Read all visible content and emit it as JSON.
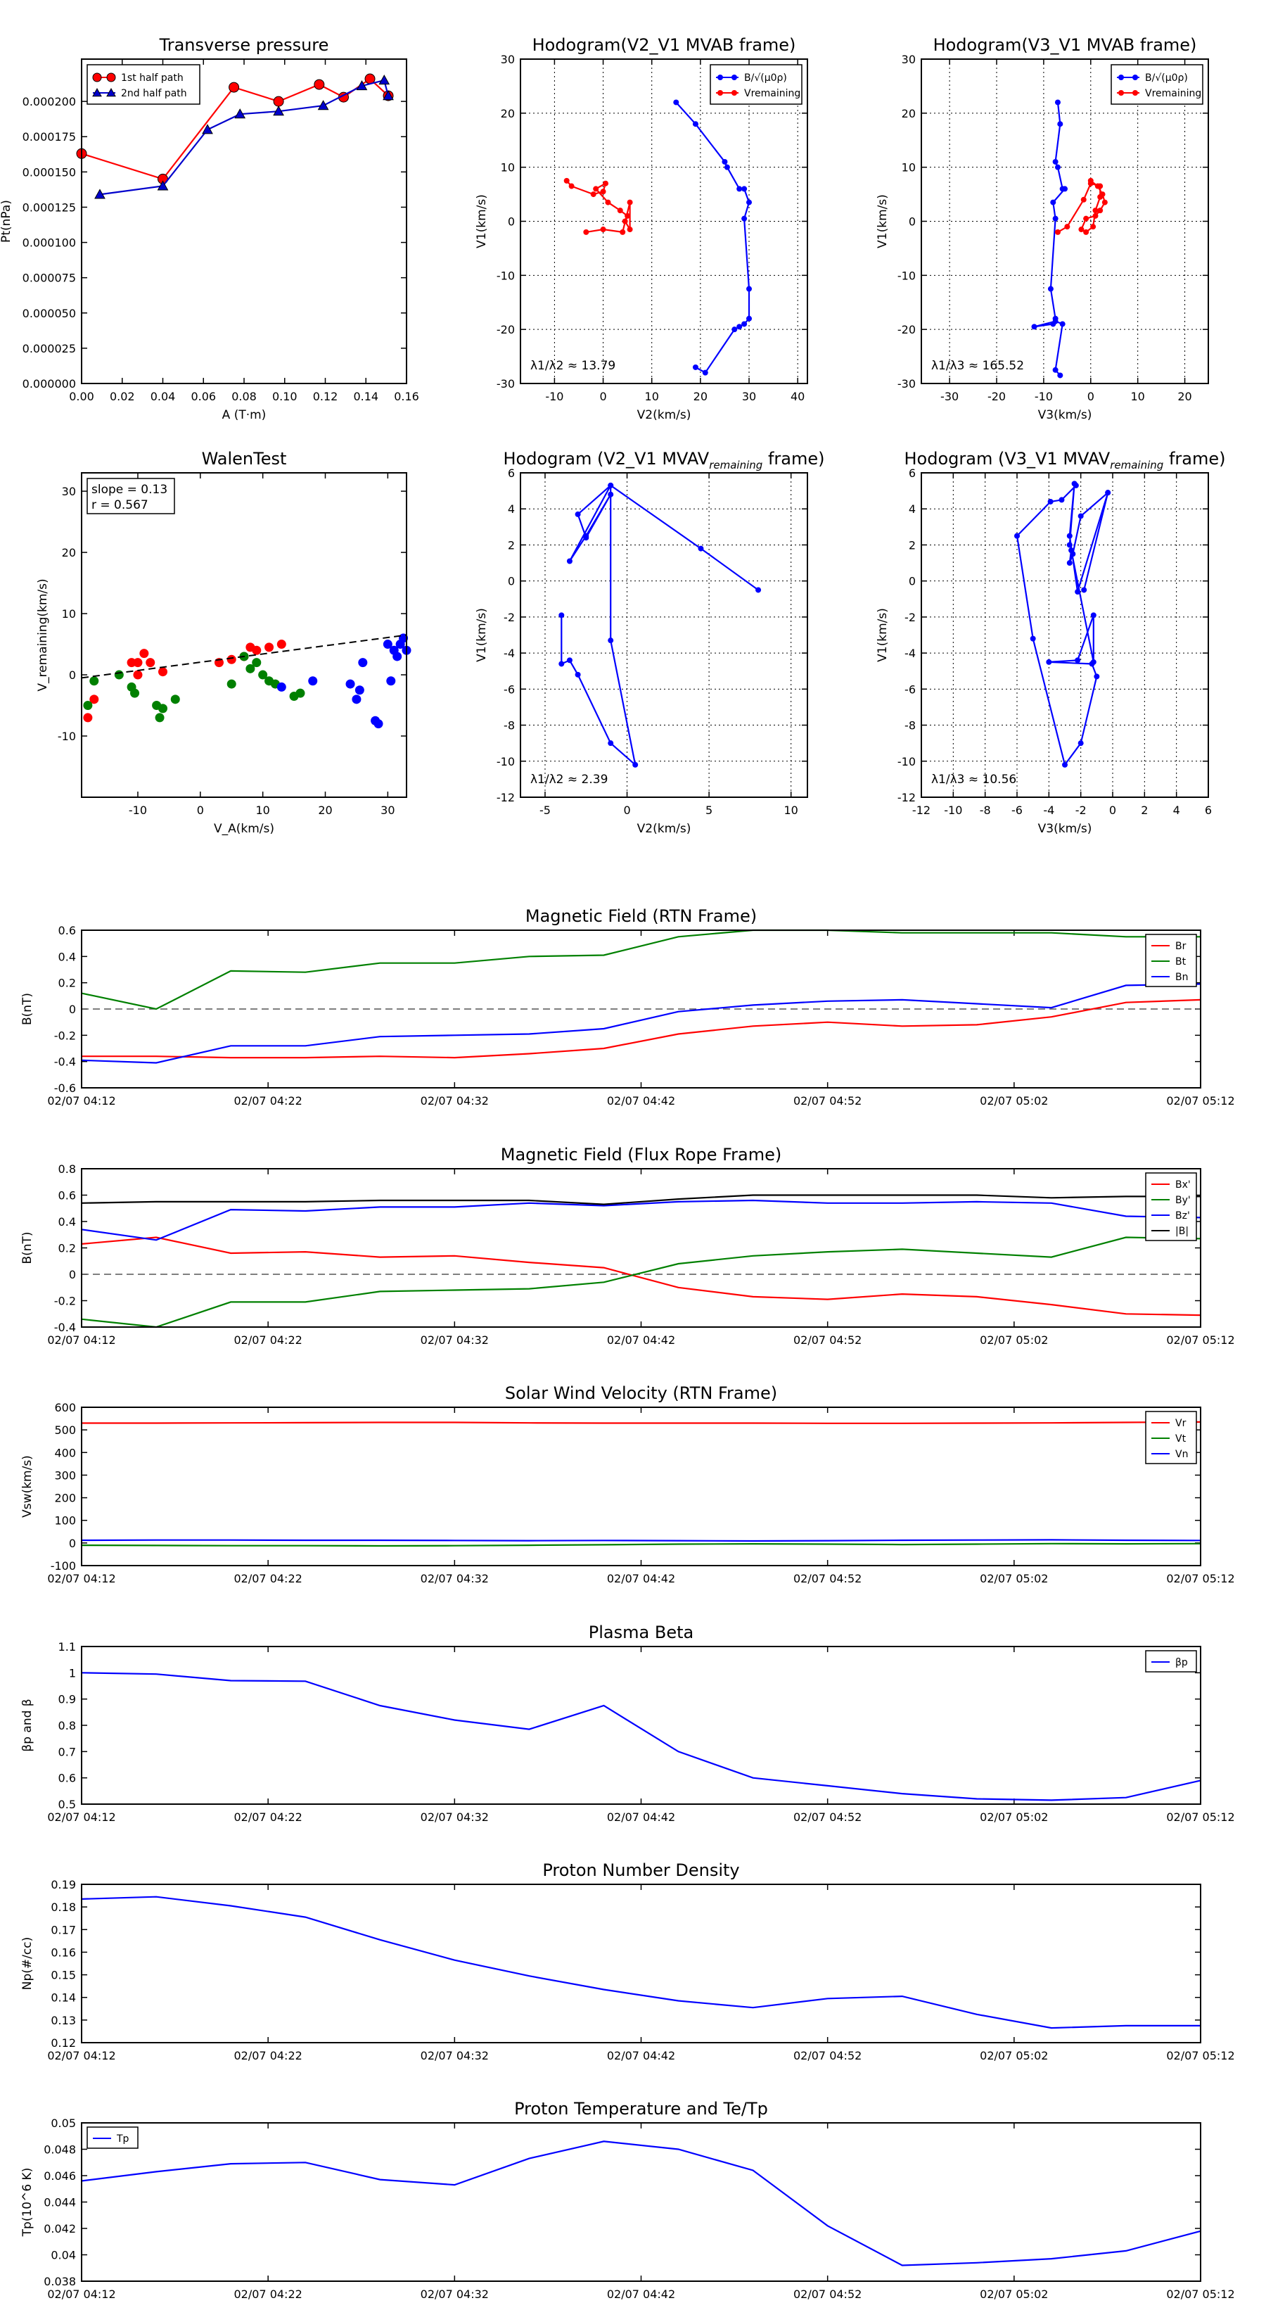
{
  "chart_data": [
    {
      "id": "transverse_pressure",
      "type": "line",
      "title": "Transverse pressure",
      "xlabel": "A (T·m)",
      "ylabel": "Pt(nPa)",
      "xlim": [
        0,
        0.16
      ],
      "ylim": [
        0,
        0.00023
      ],
      "grid": false,
      "legend_position": "top-left",
      "xticks": [
        0,
        0.02,
        0.04,
        0.06,
        0.08,
        0.1,
        0.12,
        0.14,
        0.16
      ],
      "xtick_labels": [
        "0.00",
        "0.02",
        "0.04",
        "0.06",
        "0.08",
        "0.10",
        "0.12",
        "0.14",
        "0.16"
      ],
      "yticks": [
        0,
        2.5e-05,
        5e-05,
        7.5e-05,
        0.0001,
        0.000125,
        0.00015,
        0.000175,
        0.0002
      ],
      "ytick_labels": [
        "0.000000",
        "0.000025",
        "0.000050",
        "0.000075",
        "0.000100",
        "0.000125",
        "0.000150",
        "0.000175",
        "0.000200"
      ],
      "series": [
        {
          "name": "1st half path",
          "color": "#ff0000",
          "marker": "circle",
          "x": [
            0.0,
            0.04,
            0.075,
            0.097,
            0.117,
            0.129,
            0.142,
            0.151
          ],
          "y": [
            0.000163,
            0.000145,
            0.00021,
            0.0002,
            0.000212,
            0.000203,
            0.000216,
            0.000204
          ]
        },
        {
          "name": "2nd half path",
          "color": "#0000cc",
          "marker": "triangle",
          "x": [
            0.009,
            0.04,
            0.062,
            0.078,
            0.097,
            0.119,
            0.138,
            0.149,
            0.151
          ],
          "y": [
            0.000134,
            0.00014,
            0.00018,
            0.000191,
            0.000193,
            0.000197,
            0.000211,
            0.000215,
            0.000204
          ]
        }
      ]
    },
    {
      "id": "hodo_v2_mvab",
      "type": "line",
      "title": "Hodogram(V2_V1 MVAB frame)",
      "xlabel": "V2(km/s)",
      "ylabel": "V1(km/s)",
      "xlim": [
        -17,
        42
      ],
      "ylim": [
        -30,
        30
      ],
      "grid": true,
      "legend_position": "top-right",
      "xticks": [
        -10,
        0,
        10,
        20,
        30,
        40
      ],
      "yticks": [
        -30,
        -20,
        -10,
        0,
        10,
        20,
        30
      ],
      "annotation": "λ1/λ2 ≈ 13.79",
      "series": [
        {
          "name": "B/√(μ0ρ)",
          "color": "#0000ff",
          "x": [
            15,
            19,
            25,
            25.5,
            28,
            29,
            30,
            29,
            30,
            30,
            29,
            28,
            27,
            21,
            19
          ],
          "y": [
            22,
            18,
            11,
            10,
            6,
            6,
            3.5,
            0.5,
            -12.5,
            -18,
            -19,
            -19.5,
            -20,
            -28,
            -27
          ]
        },
        {
          "name": "Vremaining",
          "color": "#ff0000",
          "x": [
            -7.5,
            -6.5,
            -2,
            0,
            0.5,
            -1.5,
            1,
            3.5,
            5,
            4.5,
            5.5,
            5.5,
            4,
            0,
            -3.5
          ],
          "y": [
            7.5,
            6.5,
            5,
            5.5,
            7,
            6,
            3.5,
            2,
            1,
            0,
            -1.5,
            3.5,
            -2,
            -1.5,
            -2
          ]
        }
      ]
    },
    {
      "id": "hodo_v3_mvab",
      "type": "line",
      "title": "Hodogram(V3_V1 MVAB frame)",
      "xlabel": "V3(km/s)",
      "ylabel": "V1(km/s)",
      "xlim": [
        -36,
        25
      ],
      "ylim": [
        -30,
        30
      ],
      "grid": true,
      "legend_position": "top-right",
      "xticks": [
        -30,
        -20,
        -10,
        0,
        10,
        20
      ],
      "yticks": [
        -30,
        -20,
        -10,
        0,
        10,
        20,
        30
      ],
      "annotation": "λ1/λ3 ≈ 165.52",
      "series": [
        {
          "name": "B/√(μ0ρ)",
          "color": "#0000ff",
          "x": [
            -7,
            -6.5,
            -7.5,
            -7,
            -6,
            -5.5,
            -8,
            -7.5,
            -8.5,
            -7.5,
            -8,
            -12,
            -7.5,
            -6,
            -7.5,
            -6.5
          ],
          "y": [
            22,
            18,
            11,
            10,
            6,
            6,
            3.5,
            0.5,
            -12.5,
            -18,
            -19,
            -19.5,
            -18.5,
            -19,
            -27.5,
            -28.5
          ]
        },
        {
          "name": "Vremaining",
          "color": "#ff0000",
          "x": [
            0,
            1.5,
            2.5,
            3,
            2,
            1,
            -1,
            -2,
            -1,
            0.5,
            1,
            2,
            2,
            0,
            -1.5,
            -5,
            -7
          ],
          "y": [
            7.5,
            6.5,
            5,
            3.5,
            2,
            1,
            0.5,
            -1.5,
            -2,
            -1,
            2,
            4.5,
            6.5,
            7,
            4,
            -1,
            -2
          ]
        }
      ]
    },
    {
      "id": "walen_test",
      "type": "scatter",
      "title": "WalenTest",
      "xlabel": "V_A(km/s)",
      "ylabel": "V_remaining(km/s)",
      "xlim": [
        -19,
        33
      ],
      "ylim": [
        -20,
        33
      ],
      "grid": false,
      "xticks": [
        -10,
        0,
        10,
        20,
        30
      ],
      "yticks": [
        -10,
        0,
        10,
        20,
        30
      ],
      "annotation": [
        "slope = 0.13",
        "r = 0.567"
      ],
      "fit_line": {
        "x": [
          -19,
          33
        ],
        "y": [
          -0.5,
          6.5
        ]
      },
      "series": [
        {
          "color": "#ff0000",
          "x": [
            -17,
            -18,
            -11,
            -10,
            -9,
            -8,
            -6,
            -10,
            3,
            5,
            7,
            8,
            9,
            11,
            13
          ],
          "y": [
            -4,
            -7,
            2,
            2,
            3.5,
            2,
            0.5,
            0,
            2,
            2.5,
            3,
            4.5,
            4,
            4.5,
            5
          ]
        },
        {
          "color": "#008000",
          "x": [
            -18,
            -17,
            -13,
            -11,
            -10.5,
            -7,
            -6,
            -6.5,
            -4,
            5,
            7,
            8,
            9,
            10,
            11,
            12,
            15,
            16
          ],
          "y": [
            -5,
            -1,
            0,
            -2,
            -3,
            -5,
            -5.5,
            -7,
            -4,
            -1.5,
            3,
            1,
            2,
            0,
            -1,
            -1.5,
            -3.5,
            -3
          ]
        },
        {
          "color": "#0000ff",
          "x": [
            13,
            18,
            24,
            25,
            25.5,
            26,
            28,
            28.5,
            30,
            30.5,
            31,
            31.5,
            32,
            32.5,
            33
          ],
          "y": [
            -2,
            -1,
            -1.5,
            -4,
            -2.5,
            2,
            -7.5,
            -8,
            5,
            -1,
            4,
            3,
            5,
            6,
            4
          ]
        }
      ]
    },
    {
      "id": "hodo_v2_mvav",
      "type": "line",
      "title": "Hodogram (V2_V1 MVAV",
      "title_sub": "remaining",
      "title_end": " frame)",
      "xlabel": "V2(km/s)",
      "ylabel": "V1(km/s)",
      "xlim": [
        -6.5,
        11
      ],
      "ylim": [
        -12,
        6
      ],
      "grid": true,
      "xticks": [
        -5,
        0,
        5,
        10
      ],
      "yticks": [
        -12,
        -10,
        -8,
        -6,
        -4,
        -2,
        0,
        2,
        4,
        6
      ],
      "annotation": "λ1/λ2 ≈ 2.39",
      "series": [
        {
          "color": "#0000ff",
          "x": [
            8,
            4.5,
            -1,
            -3.5,
            -2.5,
            -1,
            -2.5,
            -3,
            -1,
            -1,
            0.5,
            -1,
            -3,
            -3.5,
            -4,
            -4
          ],
          "y": [
            -0.5,
            1.8,
            5.3,
            1.1,
            2.5,
            4.8,
            2.4,
            3.7,
            5.3,
            -3.3,
            -10.2,
            -9,
            -5.2,
            -4.4,
            -4.6,
            -1.9
          ]
        }
      ]
    },
    {
      "id": "hodo_v3_mvav",
      "type": "line",
      "title": "Hodogram (V3_V1 MVAV",
      "title_sub": "remaining",
      "title_end": " frame)",
      "xlabel": "V3(km/s)",
      "ylabel": "V1(km/s)",
      "xlim": [
        -12,
        6
      ],
      "ylim": [
        -12,
        6
      ],
      "grid": true,
      "xticks": [
        -12,
        -10,
        -8,
        -6,
        -4,
        -2,
        0,
        2,
        4,
        6
      ],
      "yticks": [
        -12,
        -10,
        -8,
        -6,
        -4,
        -2,
        0,
        2,
        4,
        6
      ],
      "annotation": "λ1/λ3 ≈ 10.56",
      "series": [
        {
          "color": "#0000ff",
          "x": [
            -2.3,
            -3.2,
            -3.9,
            -6,
            -5,
            -3,
            -2,
            -1,
            -1.3,
            -4,
            -2.2,
            -1.2,
            -1.2,
            -2.6,
            -2.7,
            -2.5,
            -2,
            -0.3,
            -1.8,
            -0.3,
            -2.2,
            -2.7,
            -2.4,
            -2.7
          ],
          "y": [
            5.3,
            4.5,
            4.4,
            2.5,
            -3.2,
            -10.2,
            -9,
            -5.3,
            -4.6,
            -4.5,
            -4.4,
            -1.9,
            -4.5,
            1.7,
            1,
            1.5,
            3.6,
            4.9,
            -0.5,
            4.9,
            -0.6,
            2.5,
            5.4,
            2
          ]
        }
      ]
    },
    {
      "id": "mag_rtn",
      "type": "line",
      "title": "Magnetic Field (RTN Frame)",
      "ylabel": "B(nT)",
      "ylim": [
        -0.6,
        0.6
      ],
      "yticks": [
        -0.6,
        -0.4,
        -0.2,
        0,
        0.2,
        0.4,
        0.6
      ],
      "xtick_labels": [
        "02/07 04:12",
        "02/07 04:22",
        "02/07 04:32",
        "02/07 04:42",
        "02/07 04:52",
        "02/07 05:02",
        "02/07 05:12"
      ],
      "zero_line": true,
      "legend_position": "right",
      "series": [
        {
          "name": "Br",
          "color": "#ff0000",
          "values": [
            -0.36,
            -0.36,
            -0.37,
            -0.37,
            -0.36,
            -0.37,
            -0.34,
            -0.3,
            -0.19,
            -0.13,
            -0.1,
            -0.13,
            -0.12,
            -0.06,
            0.05,
            0.07
          ]
        },
        {
          "name": "Bt",
          "color": "#008000",
          "values": [
            0.12,
            0.0,
            0.29,
            0.28,
            0.35,
            0.35,
            0.4,
            0.41,
            0.55,
            0.6,
            0.6,
            0.58,
            0.58,
            0.58,
            0.55,
            0.55
          ]
        },
        {
          "name": "Bn",
          "color": "#0000ff",
          "values": [
            -0.39,
            -0.41,
            -0.28,
            -0.28,
            -0.21,
            -0.2,
            -0.19,
            -0.15,
            -0.02,
            0.03,
            0.06,
            0.07,
            0.04,
            0.01,
            0.18,
            0.19
          ]
        }
      ]
    },
    {
      "id": "mag_fluxrope",
      "type": "line",
      "title": "Magnetic Field (Flux Rope Frame)",
      "ylabel": "B(nT)",
      "ylim": [
        -0.4,
        0.8
      ],
      "yticks": [
        -0.4,
        -0.2,
        0,
        0.2,
        0.4,
        0.6,
        0.8
      ],
      "xtick_labels": [
        "02/07 04:12",
        "02/07 04:22",
        "02/07 04:32",
        "02/07 04:42",
        "02/07 04:52",
        "02/07 05:02",
        "02/07 05:12"
      ],
      "zero_line": true,
      "legend_position": "right",
      "series": [
        {
          "name": "Bx'",
          "color": "#ff0000",
          "values": [
            0.23,
            0.28,
            0.16,
            0.17,
            0.13,
            0.14,
            0.09,
            0.05,
            -0.1,
            -0.17,
            -0.19,
            -0.15,
            -0.17,
            -0.23,
            -0.3,
            -0.31
          ]
        },
        {
          "name": "By'",
          "color": "#008000",
          "values": [
            -0.34,
            -0.4,
            -0.21,
            -0.21,
            -0.13,
            -0.12,
            -0.11,
            -0.06,
            0.08,
            0.14,
            0.17,
            0.19,
            0.16,
            0.13,
            0.28,
            0.27
          ]
        },
        {
          "name": "Bz'",
          "color": "#0000ff",
          "values": [
            0.34,
            0.26,
            0.49,
            0.48,
            0.51,
            0.51,
            0.54,
            0.52,
            0.55,
            0.56,
            0.54,
            0.54,
            0.55,
            0.54,
            0.44,
            0.43
          ]
        },
        {
          "name": "|B|",
          "color": "#000000",
          "values": [
            0.54,
            0.55,
            0.55,
            0.55,
            0.56,
            0.56,
            0.56,
            0.53,
            0.57,
            0.6,
            0.6,
            0.6,
            0.6,
            0.58,
            0.59,
            0.59
          ]
        }
      ]
    },
    {
      "id": "sw_velocity",
      "type": "line",
      "title": "Solar Wind Velocity (RTN Frame)",
      "ylabel": "Vsw(km/s)",
      "ylim": [
        -100,
        600
      ],
      "yticks": [
        -100,
        0,
        100,
        200,
        300,
        400,
        500,
        600
      ],
      "xtick_labels": [
        "02/07 04:12",
        "02/07 04:22",
        "02/07 04:32",
        "02/07 04:42",
        "02/07 04:52",
        "02/07 05:02",
        "02/07 05:12"
      ],
      "legend_position": "right",
      "series": [
        {
          "name": "Vr",
          "color": "#ff0000",
          "values": [
            530,
            530,
            531,
            532,
            533,
            533,
            531,
            530,
            530,
            530,
            529,
            529,
            530,
            531,
            533,
            535
          ]
        },
        {
          "name": "Vt",
          "color": "#008000",
          "values": [
            -10,
            -11,
            -12,
            -12,
            -13,
            -12,
            -10,
            -8,
            -5,
            -4,
            -5,
            -7,
            -5,
            -3,
            -4,
            -3
          ]
        },
        {
          "name": "Vn",
          "color": "#0000ff",
          "values": [
            12,
            13,
            13,
            12,
            12,
            11,
            10,
            11,
            10,
            9,
            10,
            12,
            13,
            14,
            12,
            11
          ]
        }
      ]
    },
    {
      "id": "plasma_beta",
      "type": "line",
      "title": "Plasma Beta",
      "ylabel": "βp and β",
      "ylim": [
        0.5,
        1.1
      ],
      "yticks": [
        0.5,
        0.6,
        0.7,
        0.8,
        0.9,
        1.0,
        1.1
      ],
      "xtick_labels": [
        "02/07 04:12",
        "02/07 04:22",
        "02/07 04:32",
        "02/07 04:42",
        "02/07 04:52",
        "02/07 05:02",
        "02/07 05:12"
      ],
      "legend_position": "right",
      "series": [
        {
          "name": "βp",
          "color": "#0000ff",
          "values": [
            1.0,
            0.995,
            0.97,
            0.968,
            0.875,
            0.82,
            0.785,
            0.875,
            0.7,
            0.6,
            0.57,
            0.54,
            0.52,
            0.515,
            0.525,
            0.59
          ]
        }
      ]
    },
    {
      "id": "proton_density",
      "type": "line",
      "title": "Proton Number Density",
      "ylabel": "Np(#/cc)",
      "ylim": [
        0.12,
        0.19
      ],
      "yticks": [
        0.12,
        0.13,
        0.14,
        0.15,
        0.16,
        0.17,
        0.18,
        0.19
      ],
      "xtick_labels": [
        "02/07 04:12",
        "02/07 04:22",
        "02/07 04:32",
        "02/07 04:42",
        "02/07 04:52",
        "02/07 05:02",
        "02/07 05:12"
      ],
      "series": [
        {
          "color": "#0000ff",
          "values": [
            0.1835,
            0.1845,
            0.1805,
            0.1755,
            0.1655,
            0.1565,
            0.1495,
            0.1435,
            0.1385,
            0.1355,
            0.1395,
            0.1405,
            0.1325,
            0.1265,
            0.1275,
            0.1275
          ]
        }
      ]
    },
    {
      "id": "proton_temp",
      "type": "line",
      "title": "Proton Temperature and Te/Tp",
      "ylabel": "Tp(10^6 K)",
      "ylim": [
        0.038,
        0.05
      ],
      "yticks": [
        0.038,
        0.04,
        0.042,
        0.044,
        0.046,
        0.048,
        0.05
      ],
      "xtick_labels": [
        "02/07 04:12",
        "02/07 04:22",
        "02/07 04:32",
        "02/07 04:42",
        "02/07 04:52",
        "02/07 05:02",
        "02/07 05:12"
      ],
      "legend_position": "top-left",
      "series": [
        {
          "name": "Tp",
          "color": "#0000ff",
          "values": [
            0.0456,
            0.0463,
            0.0469,
            0.047,
            0.0457,
            0.0453,
            0.0473,
            0.0486,
            0.048,
            0.0464,
            0.0422,
            0.0392,
            0.0394,
            0.0397,
            0.0403,
            0.0418
          ]
        }
      ]
    }
  ]
}
